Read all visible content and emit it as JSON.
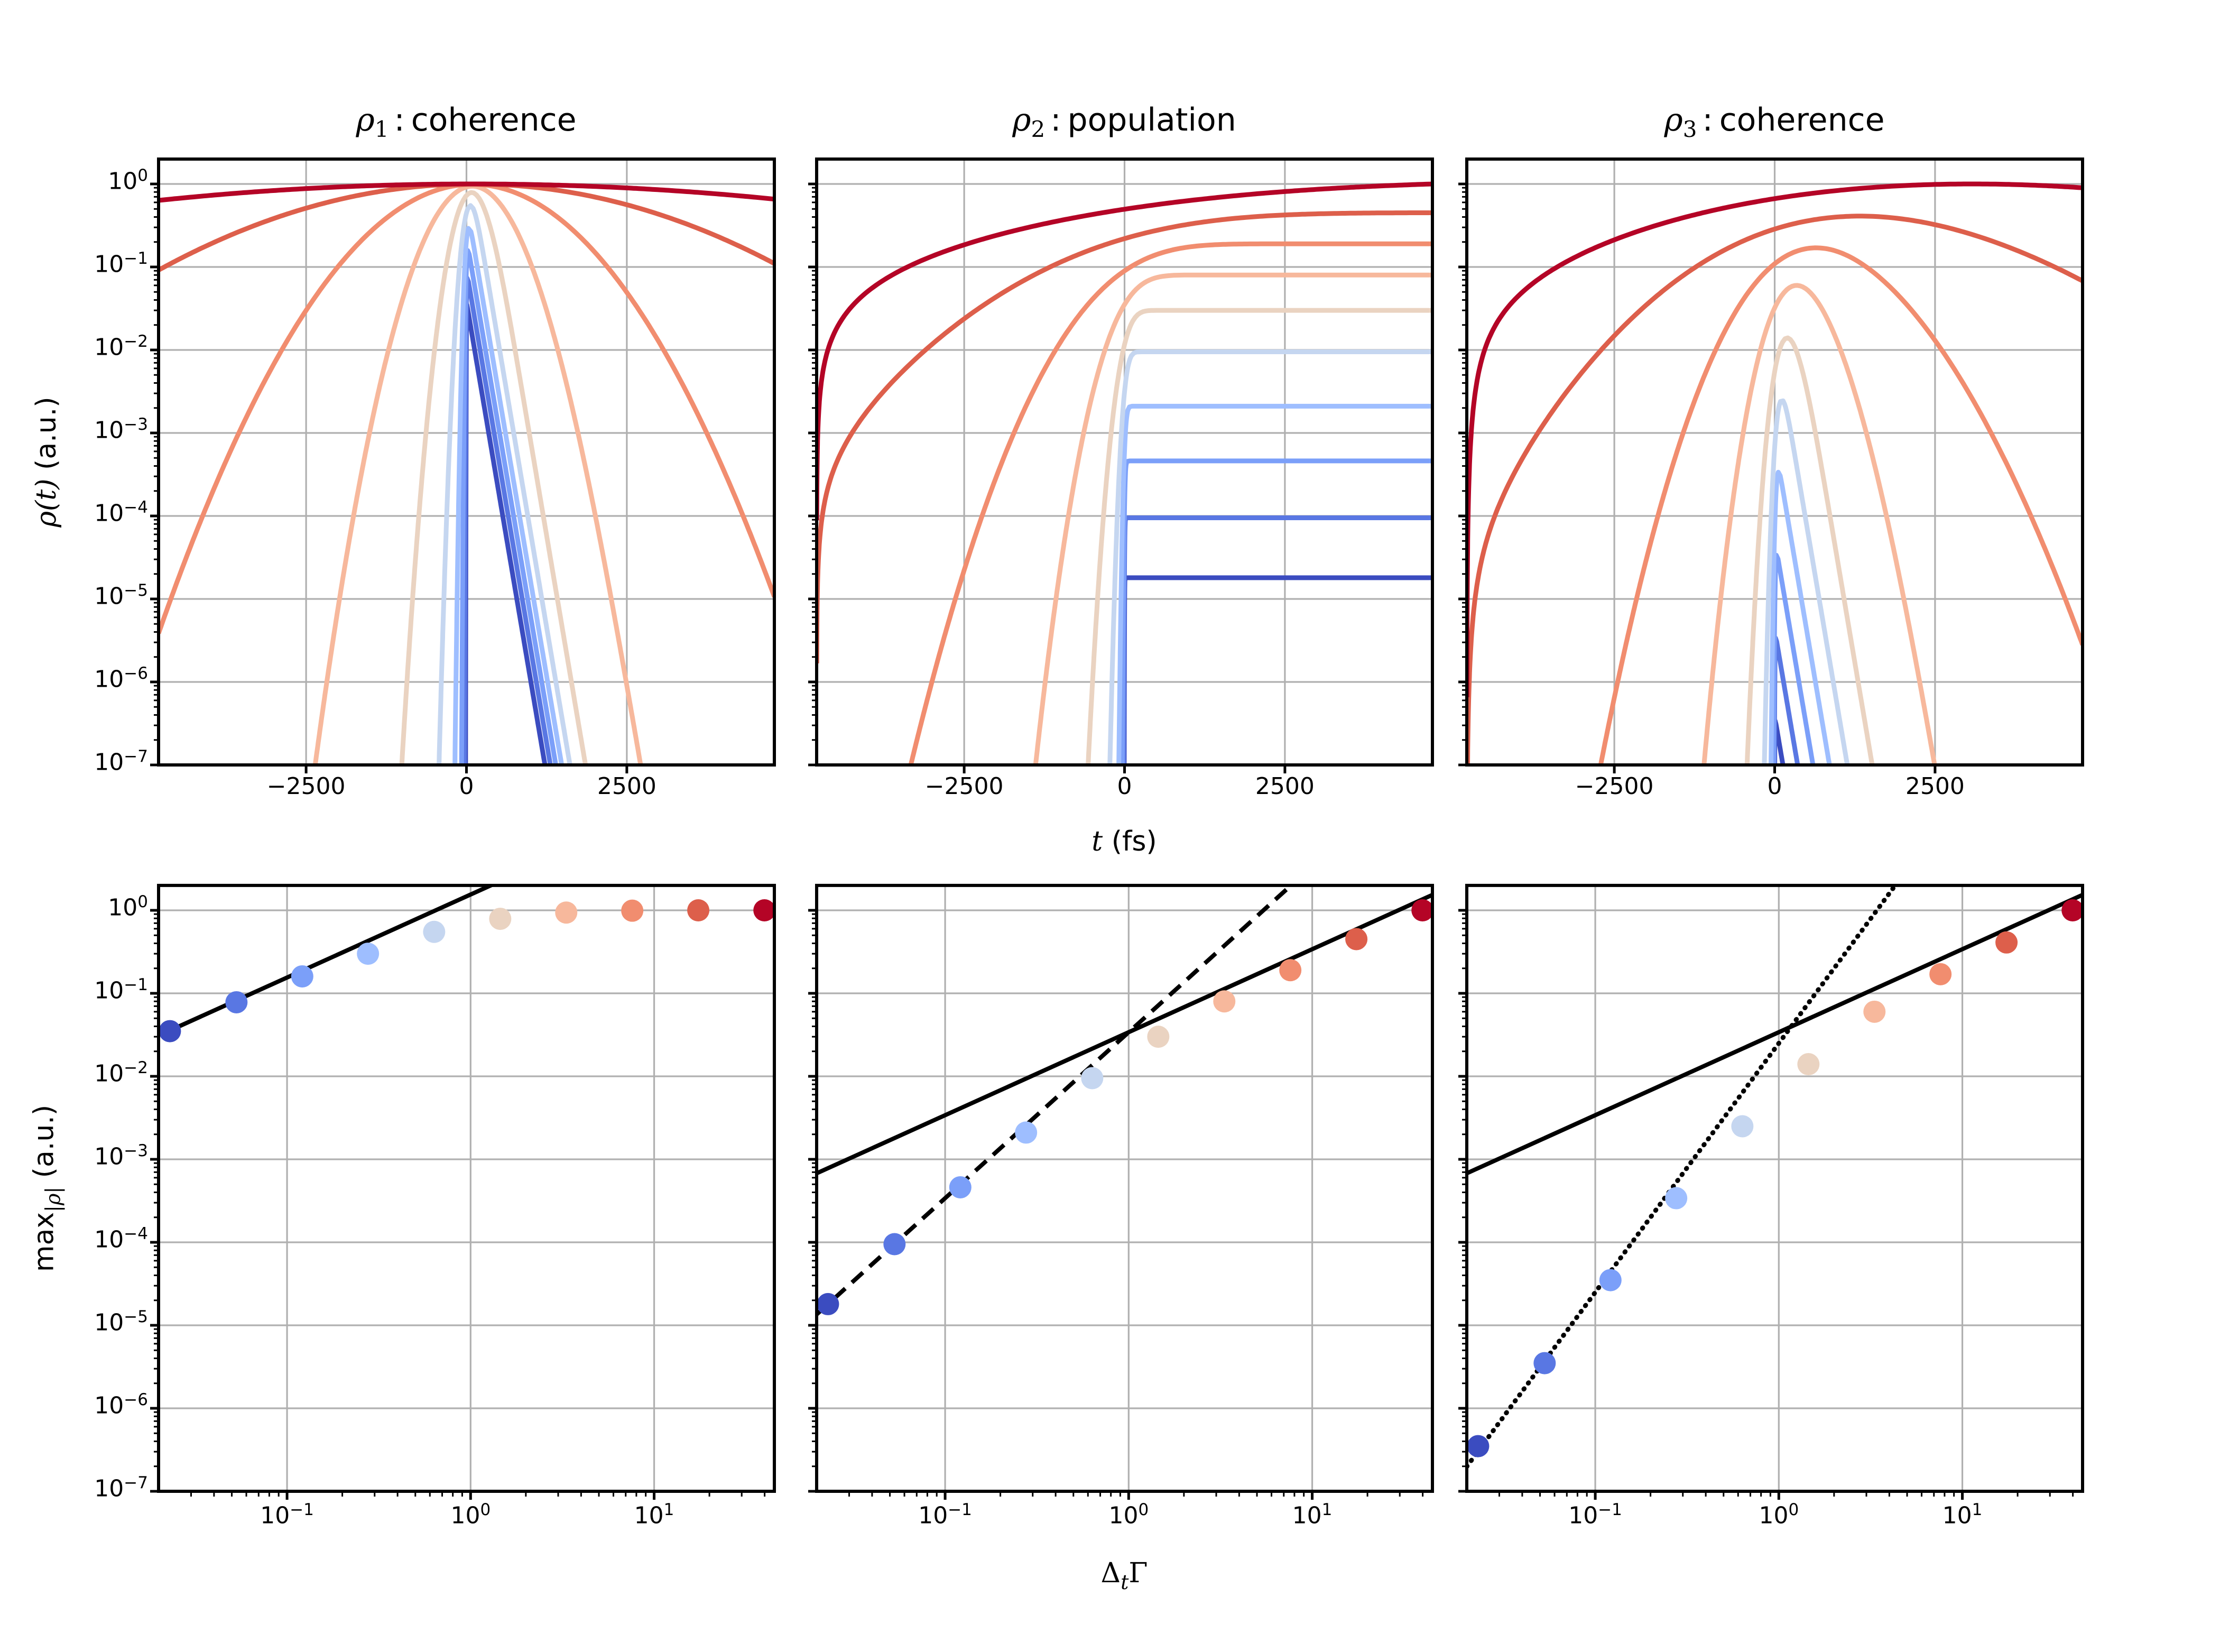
{
  "chart_data": {
    "type": [
      "line",
      "scatter"
    ],
    "figure_background": "#ffffff",
    "grid_color": "#b0b0b0",
    "accent_color": "#000000",
    "colormap": "coolwarm",
    "colormap_colors": [
      "#3b4cc0",
      "#5977e3",
      "#7b9ff9",
      "#9ebeff",
      "#c5d6f0",
      "#ead3c1",
      "#f7b89c",
      "#f18d6f",
      "#dd5f4b",
      "#b40426"
    ],
    "gamma_per_fs": 0.0105,
    "sigma_scale": 1.35,
    "t_range_fs": [
      -4800,
      4800
    ],
    "t_ticks_fs": [
      -2500,
      0,
      2500
    ],
    "y_tick_exponents": [
      0,
      -1,
      -2,
      -3,
      -4,
      -5,
      -6,
      -7
    ],
    "y_log_range": [
      -7,
      0.3
    ],
    "x_log_range": [
      -1.7,
      1.655
    ],
    "x_tick_exponents": [
      -1,
      0,
      1
    ],
    "x_values_dt_gamma": [
      0.023,
      0.053,
      0.121,
      0.276,
      0.633,
      1.45,
      3.32,
      7.6,
      17.4,
      39.9
    ],
    "panels": [
      {
        "id": "rho1",
        "kind": "c1",
        "title": {
          "sym": "ρ",
          "sub": "1",
          "sep": ":",
          "text": "coherence"
        },
        "max_values": [
          0.035,
          0.078,
          0.16,
          0.3,
          0.55,
          0.79,
          0.94,
          0.99,
          1.0,
          1.0
        ],
        "fits": [
          {
            "style": "solid",
            "exponent": 1,
            "coefficient": 1.55,
            "x_start": 0.023
          }
        ]
      },
      {
        "id": "rho2",
        "kind": "c2",
        "title": {
          "sym": "ρ",
          "sub": "2",
          "sep": ":",
          "text": "population"
        },
        "max_values": [
          1.8e-05,
          9.5e-05,
          0.00046,
          0.0021,
          0.0095,
          0.03,
          0.08,
          0.19,
          0.45,
          1.0
        ],
        "fits": [
          {
            "style": "solid",
            "exponent": 1,
            "coefficient": 0.034
          },
          {
            "style": "dashed",
            "exponent": 2,
            "coefficient": 0.034
          }
        ]
      },
      {
        "id": "rho3",
        "kind": "c3",
        "title": {
          "sym": "ρ",
          "sub": "3",
          "sep": ":",
          "text": "coherence"
        },
        "max_values": [
          3.5e-07,
          3.5e-06,
          3.5e-05,
          0.00034,
          0.0025,
          0.014,
          0.06,
          0.17,
          0.41,
          1.0
        ],
        "fits": [
          {
            "style": "solid",
            "exponent": 1,
            "coefficient": 0.034
          },
          {
            "style": "dotted",
            "exponent": 3,
            "coefficient": 0.025
          }
        ]
      }
    ],
    "labels": {
      "top_ylabel_math": "ρ(t)",
      "top_ylabel_rest": " (a.u.)",
      "bottom_ylabel_main": "max",
      "bottom_ylabel_sub": "|ρ|",
      "bottom_ylabel_rest": " (a.u.)",
      "top_xlabel_math": "t",
      "top_xlabel_rest": " (fs)",
      "bottom_xlabel_delta": "Δ",
      "bottom_xlabel_sub": "t",
      "bottom_xlabel_gamma": "Γ"
    }
  }
}
